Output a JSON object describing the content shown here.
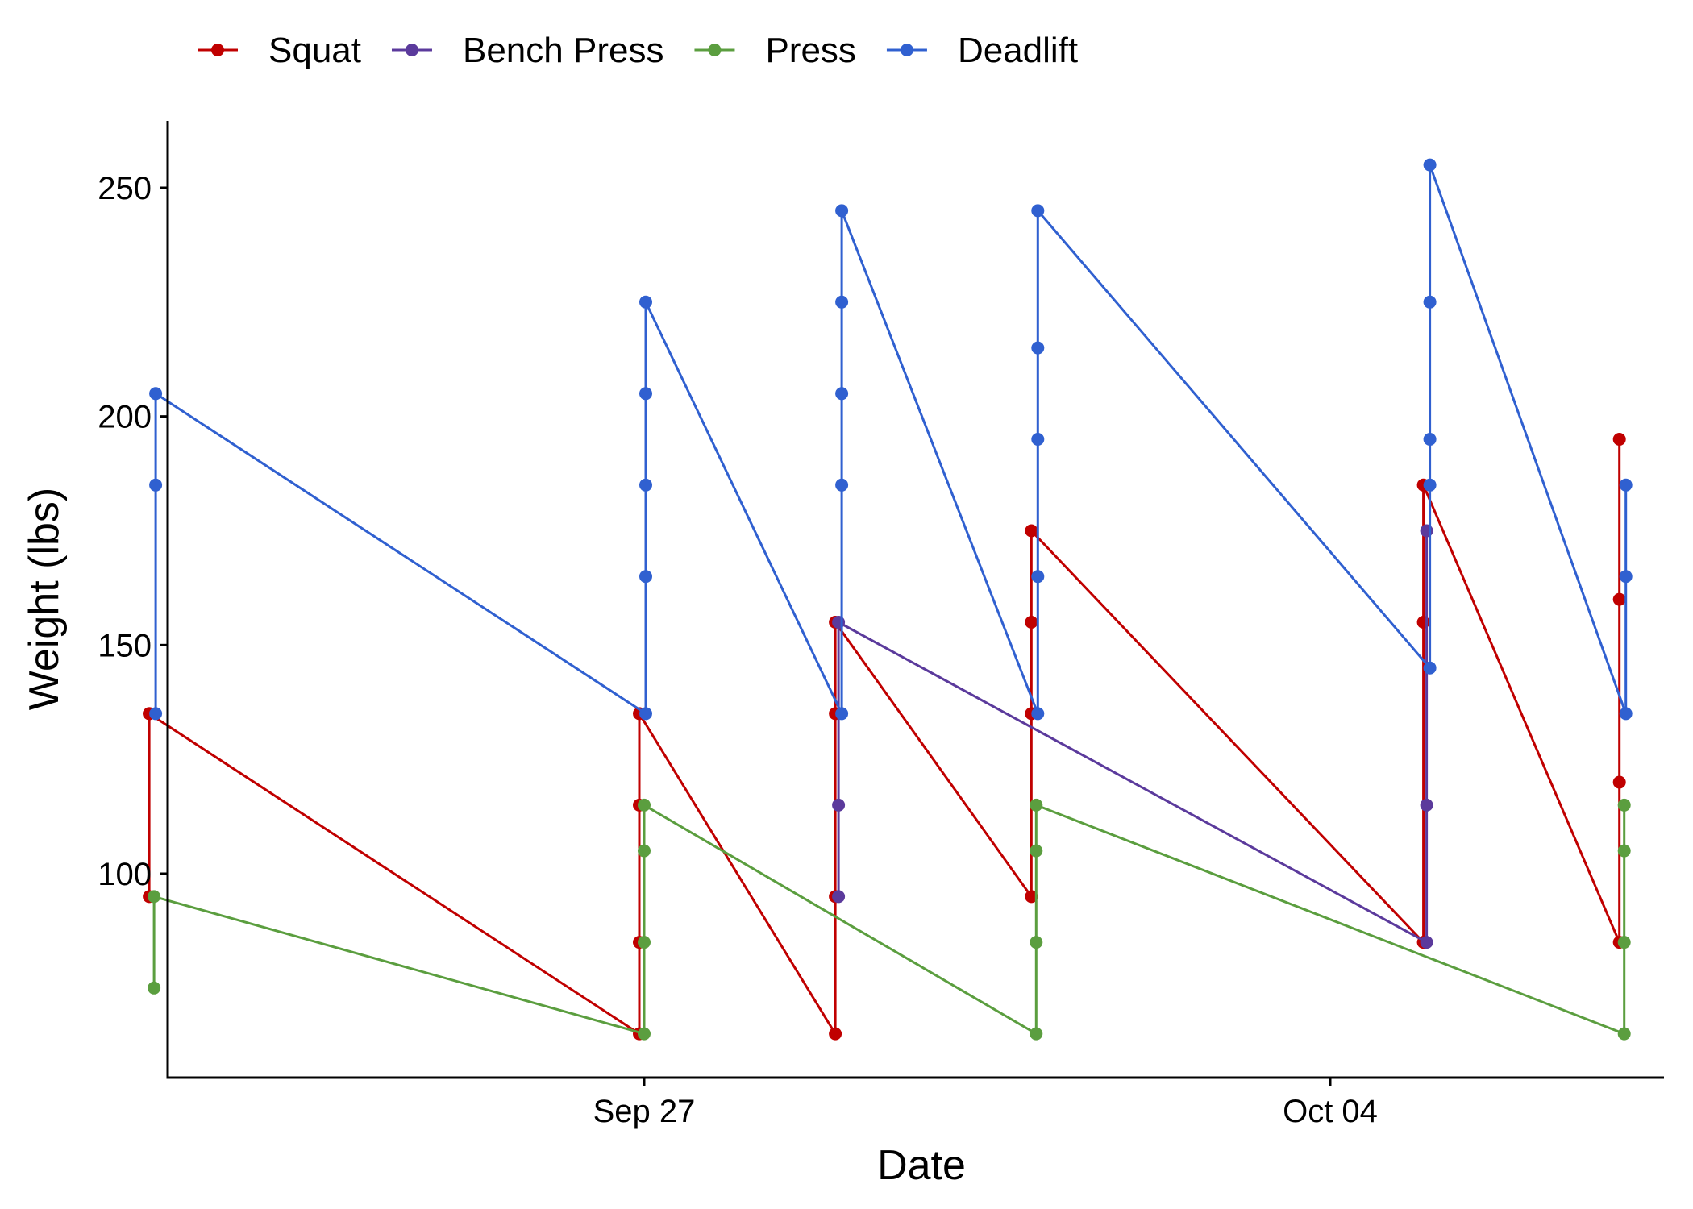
{
  "chart_data": {
    "type": "line",
    "xlabel": "Date",
    "ylabel": "Weight (lbs)",
    "x_axis": {
      "type": "date",
      "range": [
        "2023-09-20",
        "2023-10-09"
      ],
      "ticks": [
        {
          "date": "2023-09-27",
          "label": "Sep 27"
        },
        {
          "date": "2023-10-04",
          "label": "Oct 04"
        }
      ]
    },
    "y_axis": {
      "range": [
        60,
        265
      ],
      "ticks": [
        100,
        150,
        200,
        250
      ]
    },
    "grid": false,
    "legend": {
      "placement": "top-left"
    },
    "series": [
      {
        "name": "Squat",
        "color": "#C00000",
        "points": [
          {
            "x": "2023-09-22",
            "y": [
              135,
              95,
              135
            ]
          },
          {
            "x": "2023-09-27",
            "y": [
              65,
              85,
              115,
              135
            ]
          },
          {
            "x": "2023-09-29",
            "y": [
              65,
              95,
              135,
              155
            ]
          },
          {
            "x": "2023-10-01",
            "y": [
              95,
              135,
              155,
              175
            ]
          },
          {
            "x": "2023-10-05",
            "y": [
              85,
              155,
              185
            ]
          },
          {
            "x": "2023-10-07",
            "y": [
              85,
              120,
              160,
              195
            ]
          }
        ]
      },
      {
        "name": "Bench Press",
        "color": "#5B3A9C",
        "points": [
          {
            "x": "2023-09-29",
            "y": [
              95,
              115,
              155
            ]
          },
          {
            "x": "2023-10-05",
            "y": [
              85,
              115,
              175
            ]
          }
        ]
      },
      {
        "name": "Press",
        "color": "#5B9E3F",
        "points": [
          {
            "x": "2023-09-22",
            "y": [
              75,
              95
            ]
          },
          {
            "x": "2023-09-27",
            "y": [
              65,
              85,
              105,
              115
            ]
          },
          {
            "x": "2023-10-01",
            "y": [
              65,
              85,
              105,
              115
            ]
          },
          {
            "x": "2023-10-07",
            "y": [
              65,
              85,
              105,
              115
            ]
          }
        ]
      },
      {
        "name": "Deadlift",
        "color": "#3060D0",
        "points": [
          {
            "x": "2023-09-22",
            "y": [
              135,
              185,
              205
            ]
          },
          {
            "x": "2023-09-27",
            "y": [
              135,
              165,
              185,
              205,
              225
            ]
          },
          {
            "x": "2023-09-29",
            "y": [
              135,
              185,
              205,
              225,
              245
            ]
          },
          {
            "x": "2023-10-01",
            "y": [
              135,
              165,
              195,
              215,
              245
            ]
          },
          {
            "x": "2023-10-05",
            "y": [
              145,
              185,
              195,
              225,
              255
            ]
          },
          {
            "x": "2023-10-07",
            "y": [
              135,
              165,
              185
            ]
          }
        ]
      }
    ]
  }
}
